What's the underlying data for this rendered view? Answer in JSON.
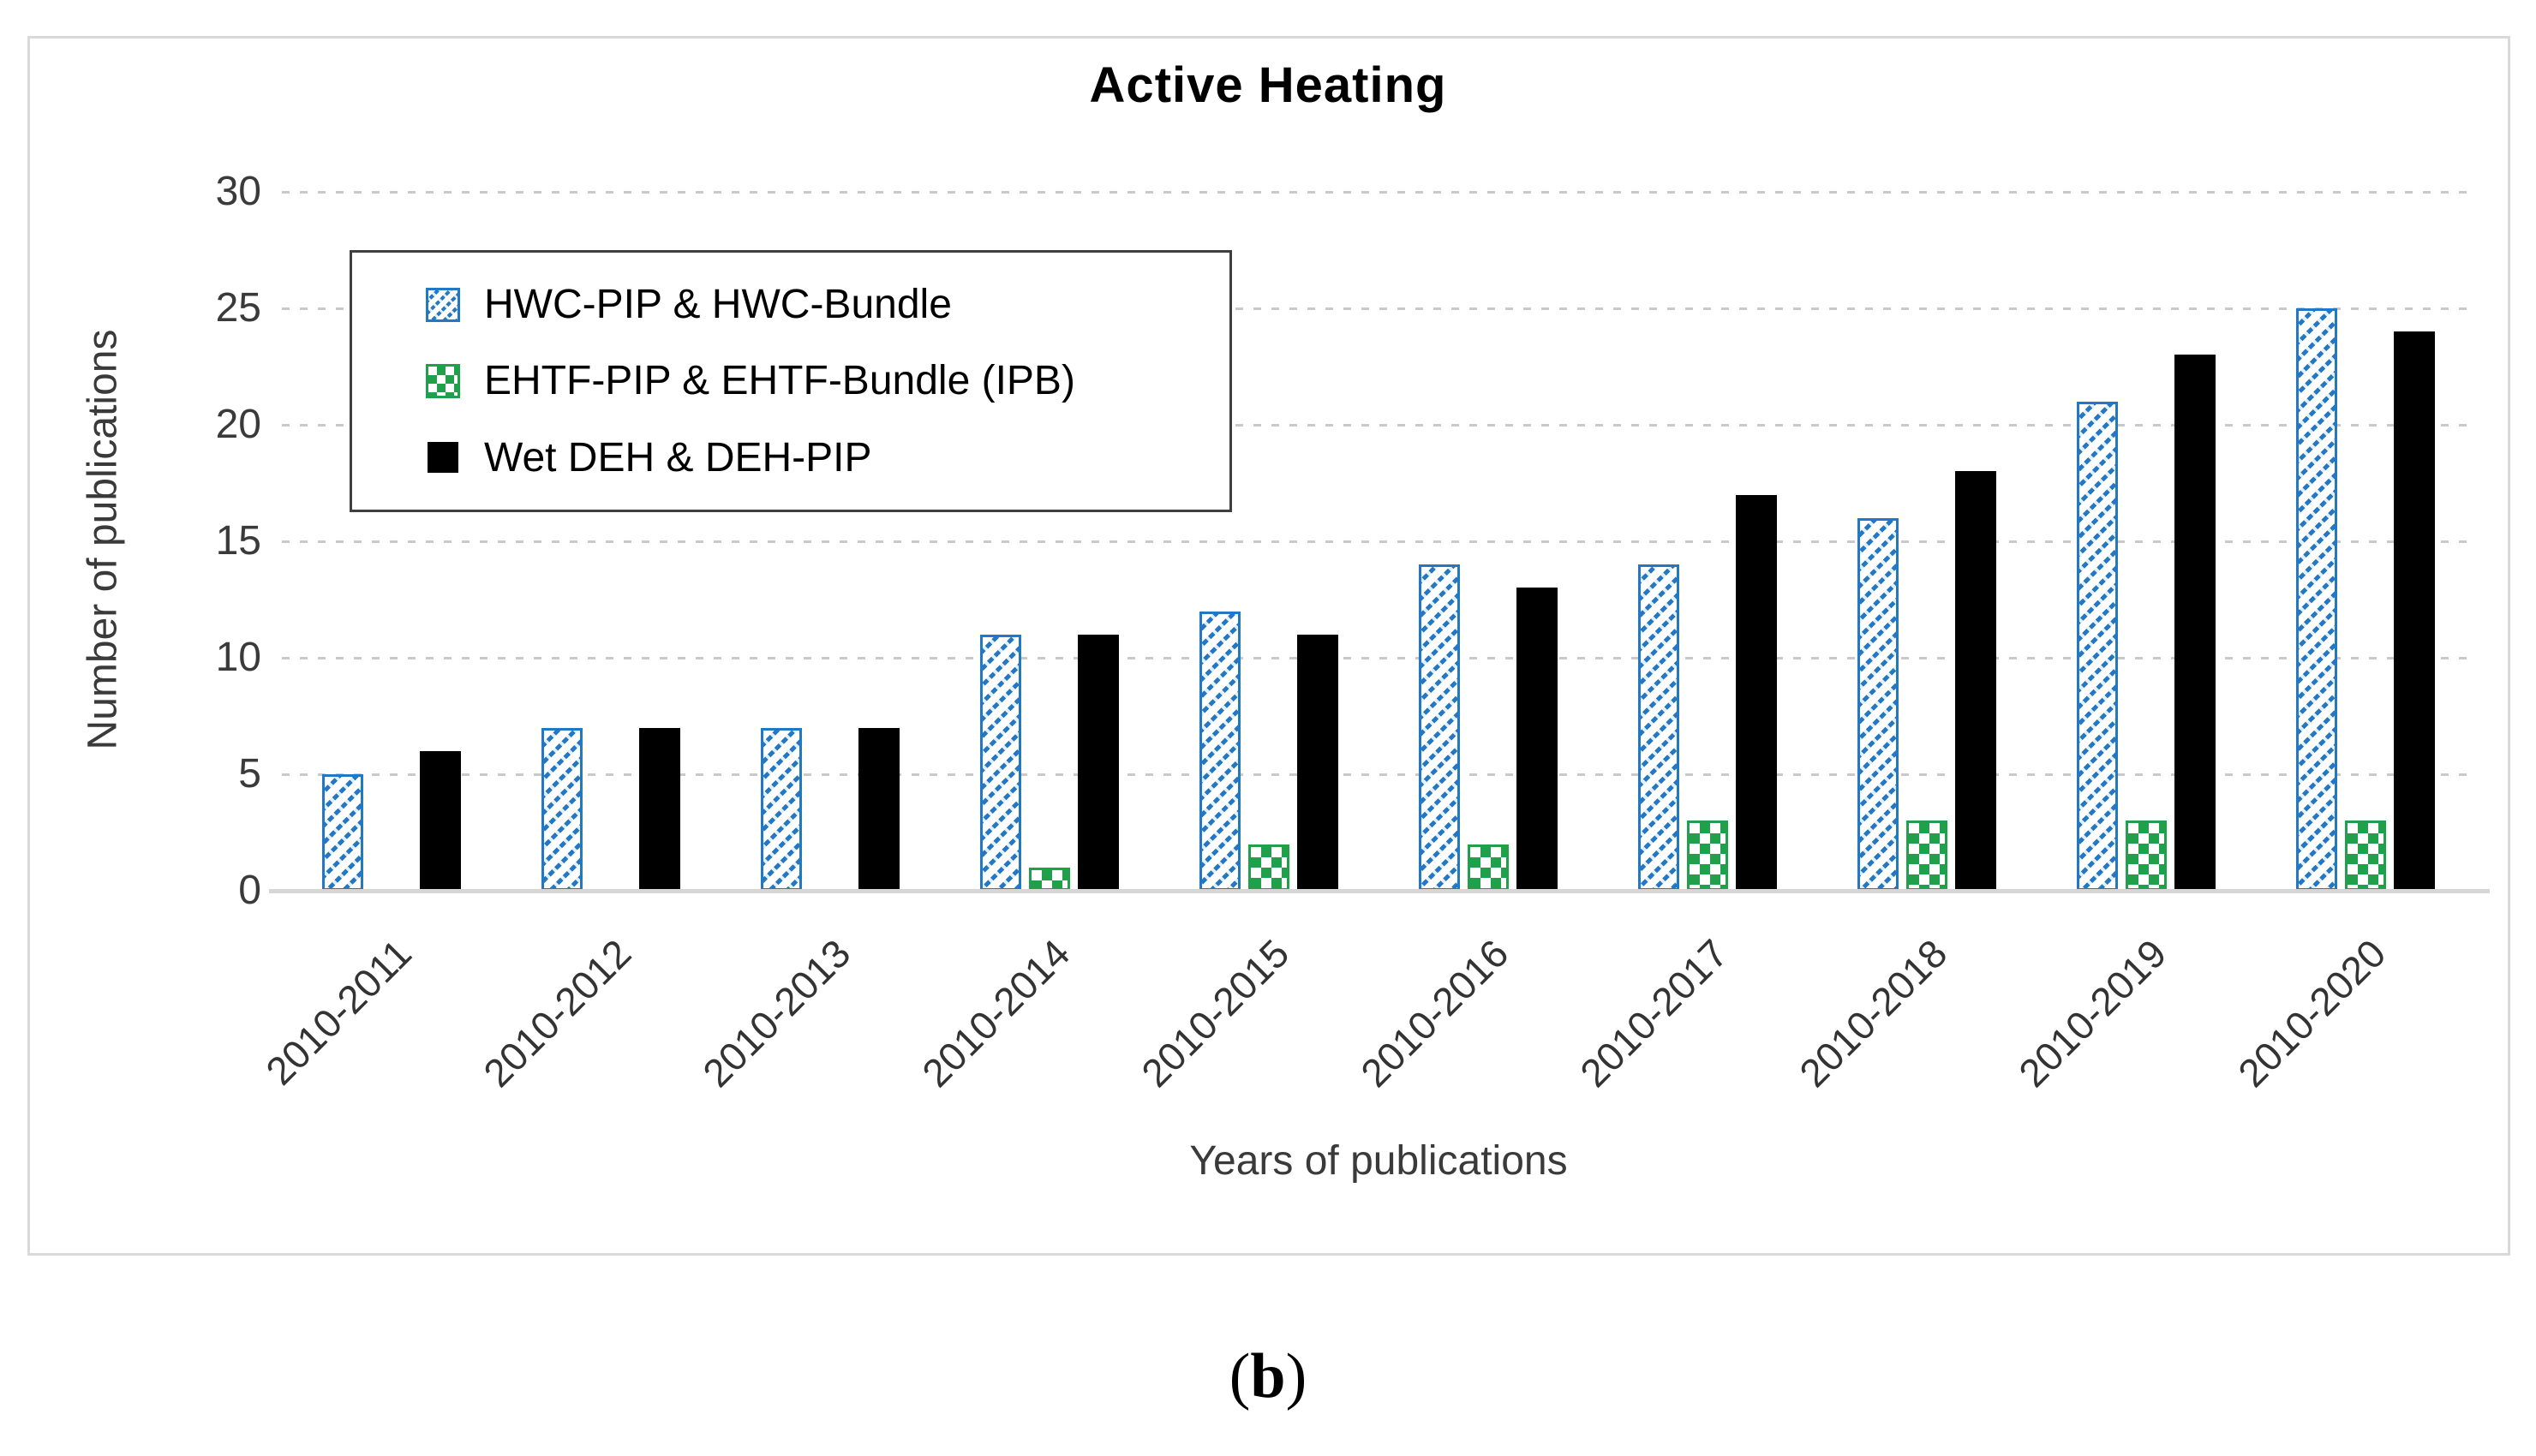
{
  "figure": {
    "title": "Active Heating",
    "caption_open": "(",
    "caption_letter": "b",
    "caption_close": ")"
  },
  "axes": {
    "y_title": "Number of publications",
    "x_title": "Years of publications",
    "y_ticks": [
      0,
      5,
      10,
      15,
      20,
      25,
      30
    ]
  },
  "legend": [
    {
      "key": "hwc",
      "label": "HWC-PIP & HWC-Bundle"
    },
    {
      "key": "ehtf",
      "label": "EHTF-PIP & EHTF-Bundle (IPB)"
    },
    {
      "key": "deh",
      "label": "Wet DEH & DEH-PIP"
    }
  ],
  "colors": {
    "hwc": "#2278C4",
    "ehtf": "#21A04C",
    "deh": "#000000",
    "gridline": "#c9c9c9",
    "figure_border": "#d9d9d9"
  },
  "chart_data": {
    "type": "bar",
    "title": "Active Heating",
    "xlabel": "Years of publications",
    "ylabel": "Number of publications",
    "ylim": [
      0,
      30
    ],
    "grid": "horizontal-dashed",
    "legend_position": "upper-left-inside",
    "categories": [
      "2010-2011",
      "2010-2012",
      "2010-2013",
      "2010-2014",
      "2010-2015",
      "2010-2016",
      "2010-2017",
      "2010-2018",
      "2010-2019",
      "2010-2020"
    ],
    "series": [
      {
        "key": "hwc",
        "name": "HWC-PIP & HWC-Bundle",
        "values": [
          5,
          7,
          7,
          11,
          12,
          14,
          14,
          16,
          21,
          25
        ]
      },
      {
        "key": "ehtf",
        "name": "EHTF-PIP & EHTF-Bundle (IPB)",
        "values": [
          0,
          0,
          0,
          1,
          2,
          2,
          3,
          3,
          3,
          3
        ]
      },
      {
        "key": "deh",
        "name": "Wet DEH & DEH-PIP",
        "values": [
          6,
          7,
          7,
          11,
          11,
          13,
          17,
          18,
          23,
          24
        ]
      }
    ]
  }
}
